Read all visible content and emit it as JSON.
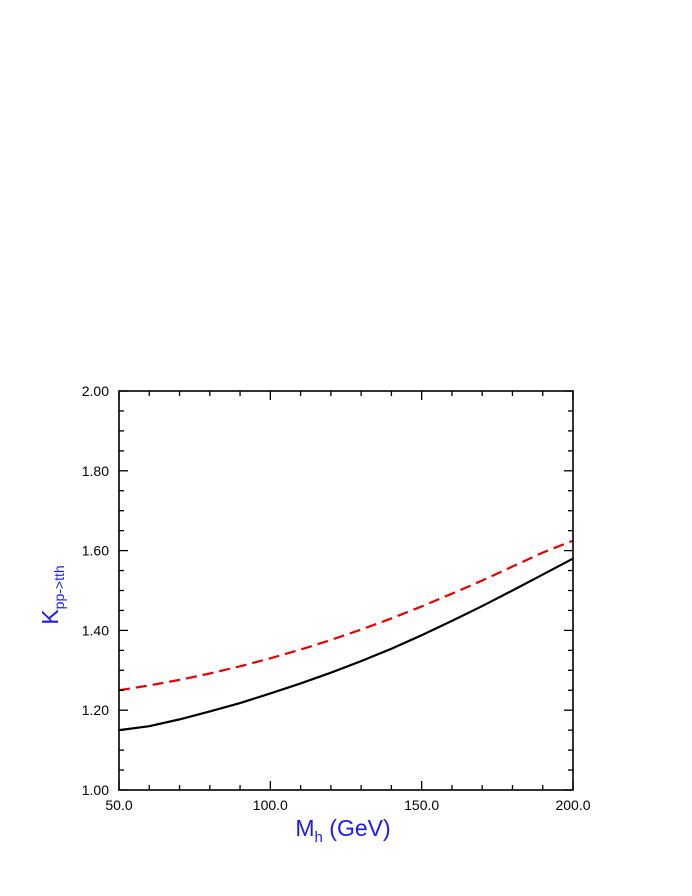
{
  "chart_data": {
    "type": "line",
    "xlabel": {
      "main": "M",
      "sub": "h",
      "rest": " (GeV)"
    },
    "ylabel": {
      "main": "K",
      "sub": "pp->tth"
    },
    "label_color": "#1a1aff",
    "xlim": [
      50,
      200
    ],
    "ylim": [
      1.0,
      2.0
    ],
    "xticks": [
      50,
      100,
      150,
      200
    ],
    "xtick_labels": [
      "50.0",
      "100.0",
      "150.0",
      "200.0"
    ],
    "yticks": [
      1.0,
      1.2,
      1.4,
      1.6,
      1.8,
      2.0
    ],
    "ytick_labels": [
      "1.00",
      "1.20",
      "1.40",
      "1.60",
      "1.80",
      "2.00"
    ],
    "grid": false,
    "series": [
      {
        "color": "#000000",
        "style": "solid",
        "x": [
          50,
          60,
          70,
          80,
          90,
          100,
          110,
          120,
          130,
          140,
          150,
          160,
          170,
          180,
          190,
          200
        ],
        "y": [
          1.15,
          1.16,
          1.177,
          1.197,
          1.218,
          1.242,
          1.267,
          1.294,
          1.323,
          1.354,
          1.388,
          1.424,
          1.461,
          1.5,
          1.54,
          1.58
        ]
      },
      {
        "color": "#e60000",
        "style": "dashed",
        "x": [
          50,
          60,
          70,
          80,
          90,
          100,
          110,
          120,
          130,
          140,
          150,
          160,
          170,
          180,
          190,
          200
        ],
        "y": [
          1.25,
          1.262,
          1.276,
          1.292,
          1.31,
          1.33,
          1.352,
          1.376,
          1.402,
          1.43,
          1.46,
          1.492,
          1.525,
          1.56,
          1.595,
          1.625
        ]
      }
    ]
  }
}
